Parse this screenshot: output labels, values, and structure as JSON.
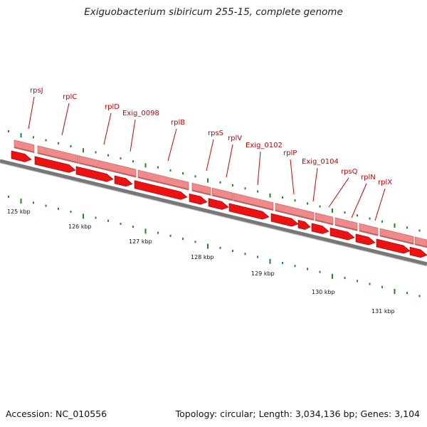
{
  "title": "Exiguobacterium sibiricum 255-15, complete genome",
  "footer": {
    "accession": "Accession: NC_010556",
    "summary": "Topology: circular; Length: 3,034,136 bp; Genes: 3,104"
  },
  "colors": {
    "backbone": "#777777",
    "cds": "#ee1111",
    "gene": "#f08a8a",
    "tick": "#1e8a1e",
    "label": "#cc0000"
  },
  "axis_labels": [
    "125 kbp",
    "126 kbp",
    "127 kbp",
    "128 kbp",
    "129 kbp",
    "130 kbp",
    "131 kbp"
  ],
  "gene_labels": [
    "rpsJ",
    "rplC",
    "rplD",
    "Exig_0098",
    "rplB",
    "rpsS",
    "rplV",
    "Exig_0102",
    "rplP",
    "Exig_0104",
    "rpsQ",
    "rplN",
    "rplX"
  ]
}
